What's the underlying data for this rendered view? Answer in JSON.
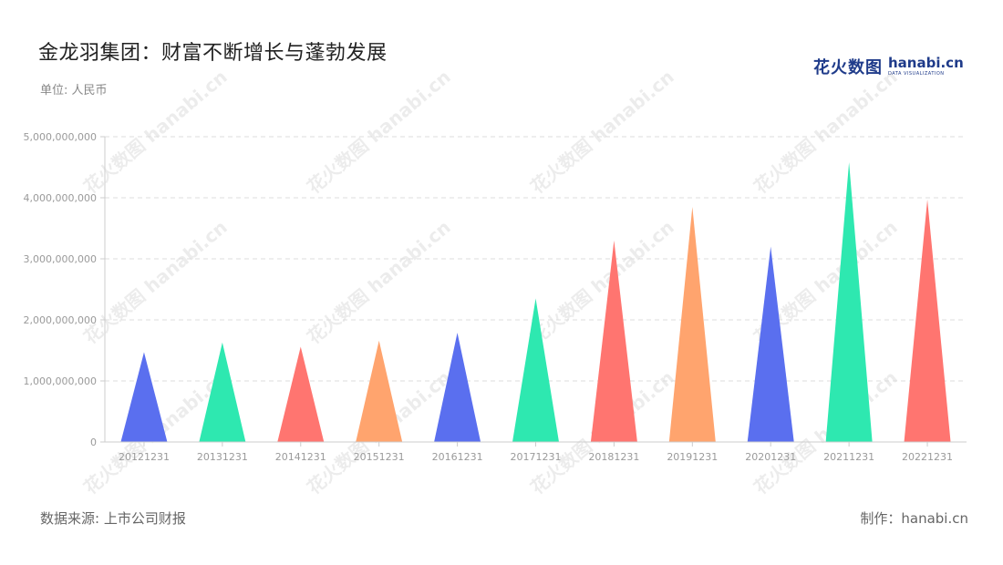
{
  "header": {
    "title": "金龙羽集团：财富不断增长与蓬勃发展",
    "unit": "单位: 人民币"
  },
  "brand": {
    "name_cn": "花火数图",
    "name_en": "hanabi.cn",
    "tagline": "DATA VISUALIZATION"
  },
  "footer": {
    "source": "数据来源: 上市公司财报",
    "credit": "制作：hanabi.cn"
  },
  "colors": {
    "blue": "#5a6fef",
    "green": "#2ee8b0",
    "red": "#ff7570",
    "orange": "#ffa46e",
    "grid": "#dddddd",
    "axis": "#cccccc"
  },
  "chart_data": {
    "type": "bar",
    "bar_shape": "triangle",
    "categories": [
      "20121231",
      "20131231",
      "20141231",
      "20151231",
      "20161231",
      "20171231",
      "20181231",
      "20191231",
      "20201231",
      "20211231",
      "20221231"
    ],
    "values": [
      1470000000,
      1630000000,
      1560000000,
      1660000000,
      1790000000,
      2350000000,
      3300000000,
      3850000000,
      3200000000,
      4580000000,
      3970000000
    ],
    "bar_colors": [
      "#5a6fef",
      "#2ee8b0",
      "#ff7570",
      "#ffa46e",
      "#5a6fef",
      "#2ee8b0",
      "#ff7570",
      "#ffa46e",
      "#5a6fef",
      "#2ee8b0",
      "#ff7570"
    ],
    "yticks": [
      "0",
      "1,000,000,000",
      "2,000,000,000",
      "3,000,000,000",
      "4,000,000,000",
      "5,000,000,000"
    ],
    "ylim": [
      0,
      5000000000
    ],
    "grid": true,
    "legend": "none"
  }
}
